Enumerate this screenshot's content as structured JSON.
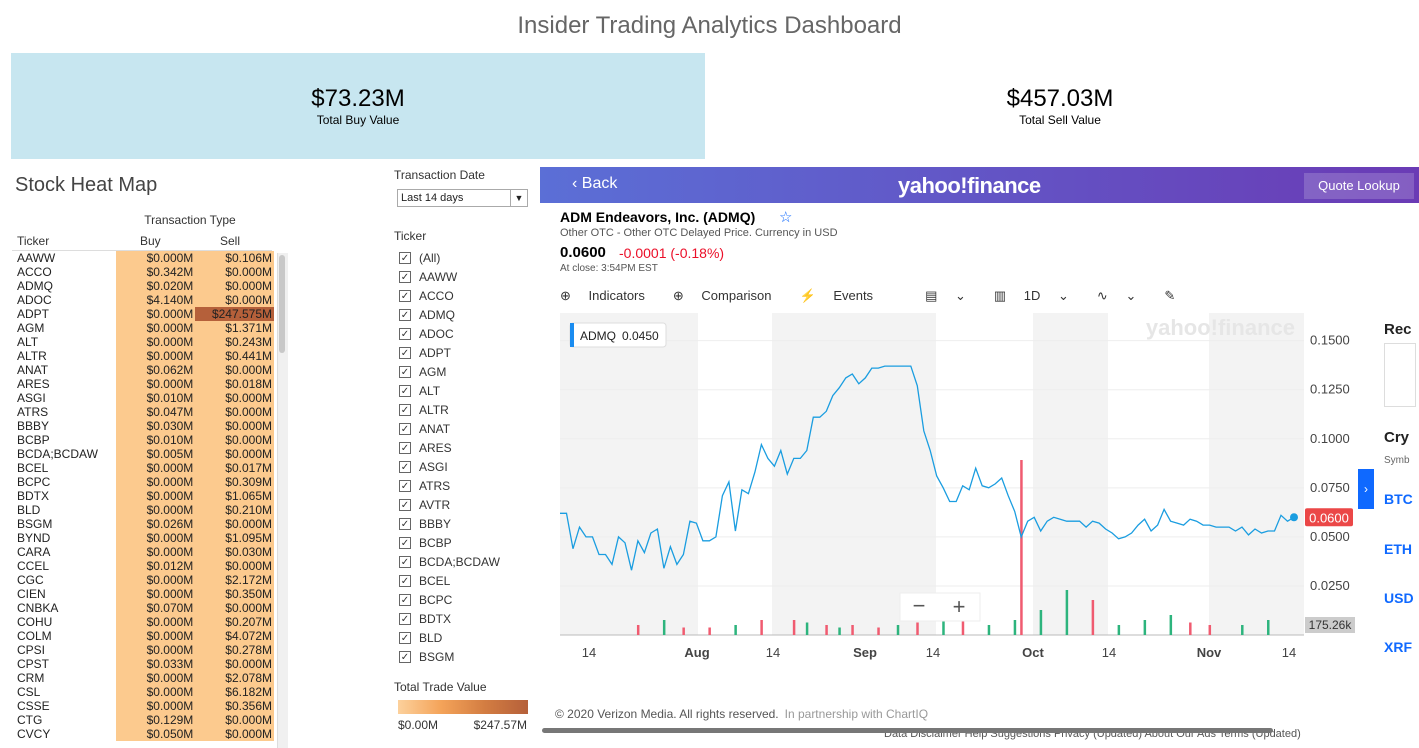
{
  "dashboard": {
    "title": "Insider Trading Analytics Dashboard",
    "total_buy": {
      "value": "$73.23M",
      "label": "Total Buy Value"
    },
    "total_sell": {
      "value": "$457.03M",
      "label": "Total Sell Value"
    },
    "colors": {
      "buy_tile": "#c7e6f0",
      "cell_base": "#fcca8e",
      "cell_max": "#b5603a"
    }
  },
  "heatmap": {
    "title": "Stock Heat Map",
    "group_header": "Transaction Type",
    "columns": [
      "Ticker",
      "Buy",
      "Sell"
    ],
    "rows": [
      [
        "AAWW",
        "$0.000M",
        "$0.106M"
      ],
      [
        "ACCO",
        "$0.342M",
        "$0.000M"
      ],
      [
        "ADMQ",
        "$0.020M",
        "$0.000M"
      ],
      [
        "ADOC",
        "$4.140M",
        "$0.000M"
      ],
      [
        "ADPT",
        "$0.000M",
        "$247.575M"
      ],
      [
        "AGM",
        "$0.000M",
        "$1.371M"
      ],
      [
        "ALT",
        "$0.000M",
        "$0.243M"
      ],
      [
        "ALTR",
        "$0.000M",
        "$0.441M"
      ],
      [
        "ANAT",
        "$0.062M",
        "$0.000M"
      ],
      [
        "ARES",
        "$0.000M",
        "$0.018M"
      ],
      [
        "ASGI",
        "$0.010M",
        "$0.000M"
      ],
      [
        "ATRS",
        "$0.047M",
        "$0.000M"
      ],
      [
        "BBBY",
        "$0.030M",
        "$0.000M"
      ],
      [
        "BCBP",
        "$0.010M",
        "$0.000M"
      ],
      [
        "BCDA;BCDAW",
        "$0.005M",
        "$0.000M"
      ],
      [
        "BCEL",
        "$0.000M",
        "$0.017M"
      ],
      [
        "BCPC",
        "$0.000M",
        "$0.309M"
      ],
      [
        "BDTX",
        "$0.000M",
        "$1.065M"
      ],
      [
        "BLD",
        "$0.000M",
        "$0.210M"
      ],
      [
        "BSGM",
        "$0.026M",
        "$0.000M"
      ],
      [
        "BYND",
        "$0.000M",
        "$1.095M"
      ],
      [
        "CARA",
        "$0.000M",
        "$0.030M"
      ],
      [
        "CCEL",
        "$0.012M",
        "$0.000M"
      ],
      [
        "CGC",
        "$0.000M",
        "$2.172M"
      ],
      [
        "CIEN",
        "$0.000M",
        "$0.350M"
      ],
      [
        "CNBKA",
        "$0.070M",
        "$0.000M"
      ],
      [
        "COHU",
        "$0.000M",
        "$0.207M"
      ],
      [
        "COLM",
        "$0.000M",
        "$4.072M"
      ],
      [
        "CPSI",
        "$0.000M",
        "$0.278M"
      ],
      [
        "CPST",
        "$0.033M",
        "$0.000M"
      ],
      [
        "CRM",
        "$0.000M",
        "$2.078M"
      ],
      [
        "CSL",
        "$0.000M",
        "$6.182M"
      ],
      [
        "CSSE",
        "$0.000M",
        "$0.356M"
      ],
      [
        "CTG",
        "$0.129M",
        "$0.000M"
      ],
      [
        "CVCY",
        "$0.050M",
        "$0.000M"
      ]
    ]
  },
  "filters": {
    "date_label": "Transaction Date",
    "date_value": "Last 14 days",
    "ticker_label": "Ticker",
    "tickers": [
      "(All)",
      "AAWW",
      "ACCO",
      "ADMQ",
      "ADOC",
      "ADPT",
      "AGM",
      "ALT",
      "ALTR",
      "ANAT",
      "ARES",
      "ASGI",
      "ATRS",
      "AVTR",
      "BBBY",
      "BCBP",
      "BCDA;BCDAW",
      "BCEL",
      "BCPC",
      "BDTX",
      "BLD",
      "BSGM"
    ],
    "check_mark": "✓",
    "legend_label": "Total Trade Value",
    "legend_min": "$0.00M",
    "legend_max": "$247.57M"
  },
  "yahoo": {
    "back": "Back",
    "logo": "yahoo!finance",
    "quote_lookup": "Quote Lookup",
    "company": "ADM Endeavors, Inc. (ADMQ)",
    "exchange_note": "Other OTC - Other OTC Delayed Price. Currency in USD",
    "price": "0.0600",
    "change": "-0.0001 (-0.18%)",
    "close_note": "At close: 3:54PM EST",
    "toolbar": {
      "indicators": "Indicators",
      "comparison": "Comparison",
      "events": "Events",
      "range": "1D"
    },
    "right_labels": [
      "Rec",
      "Cry",
      "Symb"
    ],
    "crypto": [
      "BTC",
      "ETH",
      "USD",
      "XRF"
    ],
    "footer": "© 2020 Verizon Media. All rights reserved.",
    "partnership": "In partnership with ChartIQ",
    "links": "Data Disclaimer   Help   Suggestions   Privacy (Updated)   About Our Ads   Terms (Updated)",
    "colors": {
      "line": "#1a9de0",
      "up": "#2db47d",
      "down": "#f05b70",
      "price_tag": "#eb4747"
    }
  },
  "chart_data": {
    "type": "line",
    "series": [
      {
        "name": "ADMQ",
        "values": [
          0.062,
          0.062,
          0.044,
          0.055,
          0.05,
          0.05,
          0.041,
          0.041,
          0.036,
          0.05,
          0.047,
          0.033,
          0.048,
          0.042,
          0.052,
          0.054,
          0.034,
          0.045,
          0.036,
          0.041,
          0.058,
          0.057,
          0.048,
          0.048,
          0.05,
          0.071,
          0.078,
          0.053,
          0.074,
          0.072,
          0.083,
          0.097,
          0.09,
          0.086,
          0.094,
          0.082,
          0.09,
          0.09,
          0.094,
          0.111,
          0.111,
          0.114,
          0.122,
          0.126,
          0.131,
          0.133,
          0.128,
          0.131,
          0.136,
          0.136,
          0.137,
          0.137,
          0.137,
          0.137,
          0.137,
          0.127,
          0.104,
          0.094,
          0.081,
          0.075,
          0.068,
          0.068,
          0.076,
          0.074,
          0.085,
          0.076,
          0.075,
          0.077,
          0.08,
          0.071,
          0.063,
          0.05,
          0.058,
          0.06,
          0.053,
          0.058,
          0.06,
          0.059,
          0.058,
          0.058,
          0.058,
          0.055,
          0.058,
          0.057,
          0.054,
          0.052,
          0.049,
          0.05,
          0.052,
          0.056,
          0.059,
          0.053,
          0.056,
          0.064,
          0.058,
          0.057,
          0.056,
          0.059,
          0.058,
          0.056,
          0.056,
          0.055,
          0.055,
          0.055,
          0.053,
          0.055,
          0.051,
          0.054,
          0.052,
          0.053,
          0.053,
          0.061,
          0.058,
          0.06
        ]
      }
    ],
    "x_ticks": [
      "14",
      "Aug",
      "14",
      "Sep",
      "14",
      "Oct",
      "14",
      "Nov",
      "14"
    ],
    "ylim": [
      0.0,
      0.16
    ],
    "y_ticks": [
      "0.1500",
      "0.1250",
      "0.1000",
      "0.0750",
      "0.0500",
      "0.0250"
    ],
    "cursor_label": {
      "symbol": "ADMQ",
      "value": "0.0450"
    },
    "last_price_label": "0.0600",
    "volume_label": "175.26k",
    "watermark": "yahoo!finance",
    "volume": [
      {
        "i": 12,
        "v": 0.02,
        "up": false
      },
      {
        "i": 16,
        "v": 0.03,
        "up": true
      },
      {
        "i": 19,
        "v": 0.015,
        "up": false
      },
      {
        "i": 23,
        "v": 0.015,
        "up": false
      },
      {
        "i": 27,
        "v": 0.02,
        "up": true
      },
      {
        "i": 31,
        "v": 0.03,
        "up": false
      },
      {
        "i": 36,
        "v": 0.03,
        "up": false
      },
      {
        "i": 38,
        "v": 0.025,
        "up": true
      },
      {
        "i": 41,
        "v": 0.02,
        "up": false
      },
      {
        "i": 43,
        "v": 0.015,
        "up": true
      },
      {
        "i": 45,
        "v": 0.02,
        "up": false
      },
      {
        "i": 49,
        "v": 0.015,
        "up": false
      },
      {
        "i": 52,
        "v": 0.02,
        "up": true
      },
      {
        "i": 55,
        "v": 0.025,
        "up": false
      },
      {
        "i": 59,
        "v": 0.04,
        "up": true
      },
      {
        "i": 62,
        "v": 0.03,
        "up": false
      },
      {
        "i": 66,
        "v": 0.02,
        "up": true
      },
      {
        "i": 70,
        "v": 0.03,
        "up": true
      },
      {
        "i": 71,
        "v": 0.35,
        "up": false
      },
      {
        "i": 74,
        "v": 0.05,
        "up": true
      },
      {
        "i": 78,
        "v": 0.09,
        "up": true
      },
      {
        "i": 82,
        "v": 0.07,
        "up": false
      },
      {
        "i": 86,
        "v": 0.02,
        "up": true
      },
      {
        "i": 90,
        "v": 0.03,
        "up": true
      },
      {
        "i": 94,
        "v": 0.04,
        "up": true
      },
      {
        "i": 97,
        "v": 0.025,
        "up": false
      },
      {
        "i": 100,
        "v": 0.02,
        "up": false
      },
      {
        "i": 105,
        "v": 0.02,
        "up": true
      },
      {
        "i": 109,
        "v": 0.03,
        "up": true
      }
    ]
  }
}
